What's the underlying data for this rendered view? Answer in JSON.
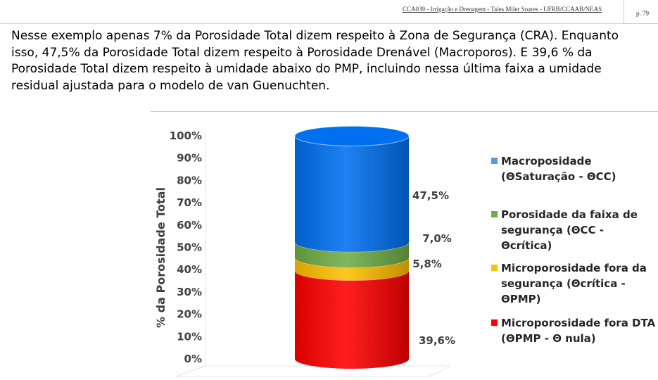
{
  "header": {
    "course_ref": "CCA039 - Irrigação e Drenagem - Tales Miler Soares - UFRB/CCAAB/NEAS",
    "page": "p. 79"
  },
  "body_text": "Nesse exemplo apenas 7% da Porosidade Total dizem respeito à Zona de Segurança (CRA). Enquanto isso, 47,5% da Porosidade Total dizem respeito à Porosidade Drenável (Macroporos). E 39,6 % da Porosidade Total dizem respeito à umidade abaixo do PMP, incluindo nessa última faixa a umidade residual ajustada para o modelo de van Guenuchten.",
  "chart_data": {
    "type": "bar",
    "stacked": true,
    "three_d": true,
    "title": "",
    "xlabel": "",
    "ylabel": "% da Porosidade Total",
    "ylim": [
      0,
      100
    ],
    "yticks": [
      "0%",
      "10%",
      "20%",
      "30%",
      "40%",
      "50%",
      "60%",
      "70%",
      "80%",
      "90%",
      "100%"
    ],
    "categories": [
      ""
    ],
    "series": [
      {
        "name": "Microporosidade fora DTA (ΘPMP - Θ nula)",
        "values": [
          39.6
        ],
        "label": "39,6%",
        "color": "#ff0000"
      },
      {
        "name": "Microporosidade fora da segurança (Θcrítica - ΘPMP)",
        "values": [
          5.8
        ],
        "label": "5,8%",
        "color": "#ffc000"
      },
      {
        "name": "Porosidade da faixa de segurança (ΘCC - Θcrítica)",
        "values": [
          7.0
        ],
        "label": "7,0%",
        "color": "#70ad47"
      },
      {
        "name": "Macroposidade (ΘSaturação - ΘCC)",
        "values": [
          47.5
        ],
        "label": "47,5%",
        "color": "#0070f0"
      }
    ],
    "legend": {
      "placement": "right",
      "entries": [
        {
          "label": "Macroposidade (ΘSaturação - ΘCC)",
          "color": "#5b9bd5"
        },
        {
          "label": "Porosidade da faixa de segurança (ΘCC - Θcrítica)",
          "color": "#70ad47"
        },
        {
          "label": "Microporosidade fora da segurança (Θcrítica - ΘPMP)",
          "color": "#ffc000"
        },
        {
          "label": "Microporosidade fora DTA (ΘPMP - Θ nula)",
          "color": "#ff0000"
        }
      ]
    },
    "grid": false
  }
}
